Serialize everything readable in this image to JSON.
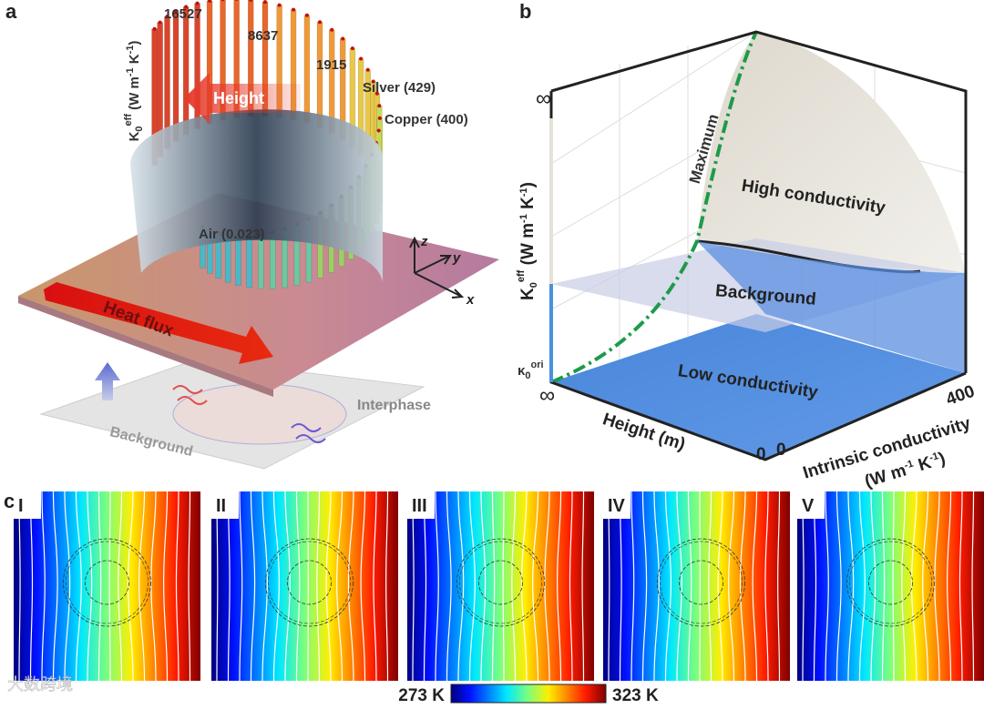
{
  "panel_a": {
    "label": "a",
    "y_label": [
      "K",
      "0",
      "eff",
      " (W m",
      "-1",
      " K",
      "-1",
      ")"
    ],
    "materials": [
      "16527",
      "8637",
      "1915",
      "Silver (429)",
      "Copper (400)"
    ],
    "air": "Air (0.023)",
    "arrow_height": "Height",
    "arrow_heat": "Heat flux",
    "interphase": "Interphase",
    "background": "Background",
    "axes": [
      "z",
      "y",
      "x"
    ]
  },
  "panel_b": {
    "label": "b",
    "infinity_top": "∞",
    "infinity_bottom": "∞",
    "k_ori": [
      "κ",
      "0",
      "ori"
    ],
    "y_label": [
      "K",
      "0",
      "eff",
      " (W m",
      "-1",
      " K",
      "-1",
      ")"
    ],
    "maximum": "Maximum",
    "high": "High conductivity",
    "background": "Background",
    "low": "Low conductivity",
    "x_label": "Height (m)",
    "x_zero": "0",
    "z_zero": "0",
    "z_max": "400",
    "z_label": "Intrinsic conductivity",
    "z_unit": [
      "(W m",
      "-1",
      " K",
      "-1",
      ")"
    ]
  },
  "panel_c": {
    "label": "c",
    "panels": [
      "I",
      "II",
      "III",
      "IV",
      "V"
    ],
    "colorbar": {
      "min": "273 K",
      "max": "323 K"
    }
  },
  "watermark": "大数跨境"
}
